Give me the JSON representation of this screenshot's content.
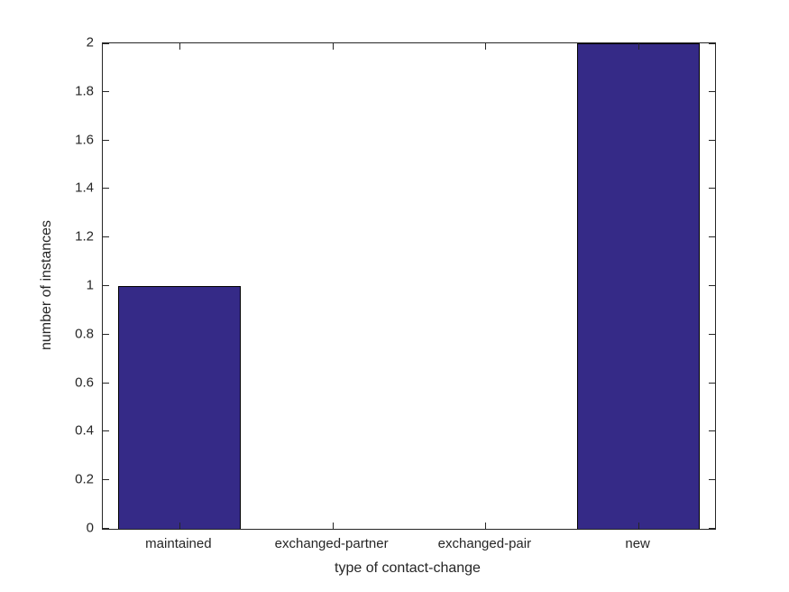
{
  "chart_data": {
    "type": "bar",
    "title": "",
    "categories": [
      "maintained",
      "exchanged-partner",
      "exchanged-pair",
      "new"
    ],
    "values": [
      1,
      0,
      0,
      2
    ],
    "xlabel": "type of contact-change",
    "ylabel": "number of instances",
    "ylim": [
      0,
      2
    ],
    "ytick_step": 0.2,
    "ytick_labels": [
      "0",
      "0.2",
      "0.4",
      "0.6",
      "0.8",
      "1",
      "1.2",
      "1.4",
      "1.6",
      "1.8",
      "2"
    ],
    "grid": "off",
    "legend": "none",
    "bar_width_fraction": 0.8,
    "colors": {
      "bar_fill": "#352A87",
      "bar_edge": "#000000",
      "axis": "#262626",
      "text": "#262626",
      "background": "#ffffff"
    }
  }
}
